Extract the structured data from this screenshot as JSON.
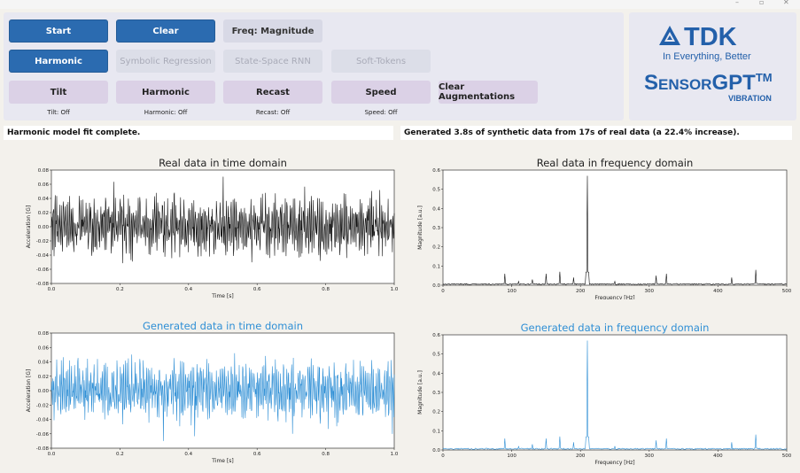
{
  "window": {
    "minimize": "–",
    "maximize": "▫",
    "close": "✕"
  },
  "row1": [
    {
      "id": "start",
      "label": "Start",
      "style": "primary"
    },
    {
      "id": "clear",
      "label": "Clear",
      "style": "primary"
    },
    {
      "id": "freq",
      "label": "Freq: Magnitude",
      "style": "neutral"
    }
  ],
  "row2": [
    {
      "id": "harmonic-model",
      "label": "Harmonic",
      "style": "primary"
    },
    {
      "id": "symbolic-regression",
      "label": "Symbolic Regression",
      "style": "disabled"
    },
    {
      "id": "state-space-rnn",
      "label": "State-Space RNN",
      "style": "disabled"
    },
    {
      "id": "soft-tokens",
      "label": "Soft-Tokens",
      "style": "disabled"
    }
  ],
  "row3": [
    {
      "id": "tilt",
      "label": "Tilt",
      "status": "Tilt: Off"
    },
    {
      "id": "harmonic-aug",
      "label": "Harmonic",
      "status": "Harmonic: Off"
    },
    {
      "id": "recast",
      "label": "Recast",
      "status": "Recast: Off"
    },
    {
      "id": "speed",
      "label": "Speed",
      "status": "Speed: Off"
    },
    {
      "id": "clear-augmentations",
      "label": "Clear Augmentations",
      "status": ""
    }
  ],
  "logo": {
    "brand": "TDK",
    "tagline": "In Everything, Better",
    "product": "SensorGPT",
    "tm": "TM",
    "sub": "VIBRATION",
    "color": "#2360aa"
  },
  "status_left": "Harmonic model fit complete.",
  "status_right": "Generated 3.8s of synthetic data from 17s of real data (a 22.4% increase).",
  "colors": {
    "real": "#111111",
    "generated": "#2f8fd5",
    "primary": "#2b6bb0"
  },
  "chart_data": [
    {
      "type": "line",
      "title": "Real data in time domain",
      "xlabel": "Time [s]",
      "ylabel": "Acceleration [G]",
      "xlim": [
        0.0,
        1.0
      ],
      "ylim": [
        -0.08,
        0.08
      ],
      "xticks": [
        "0.0",
        "0.2",
        "0.4",
        "0.6",
        "0.8",
        "1.0"
      ],
      "yticks": [
        "0.08",
        "0.06",
        "0.04",
        "0.02",
        "0.00",
        "-0.02",
        "-0.04",
        "-0.06",
        "-0.08"
      ],
      "series": [
        {
          "color": "#111111",
          "amplitude": 0.045,
          "peak": 0.075
        }
      ]
    },
    {
      "type": "line",
      "title": "Real data in frequency domain",
      "xlabel": "Frequency [Hz]",
      "ylabel": "Magnitude [a.u.]",
      "xlim": [
        0,
        500
      ],
      "ylim": [
        0.0,
        0.6
      ],
      "xticks": [
        "0",
        "100",
        "200",
        "300",
        "400",
        "500"
      ],
      "yticks": [
        "0.6",
        "0.5",
        "0.4",
        "0.3",
        "0.2",
        "0.1",
        "0.0"
      ],
      "peaks": [
        [
          90,
          0.06
        ],
        [
          110,
          0.02
        ],
        [
          130,
          0.03
        ],
        [
          150,
          0.06
        ],
        [
          170,
          0.07
        ],
        [
          190,
          0.04
        ],
        [
          210,
          0.57
        ],
        [
          250,
          0.02
        ],
        [
          310,
          0.05
        ],
        [
          325,
          0.06
        ],
        [
          420,
          0.04
        ],
        [
          455,
          0.08
        ]
      ],
      "series": [
        {
          "color": "#111111"
        }
      ]
    },
    {
      "type": "line",
      "title": "Generated data in time domain",
      "xlabel": "Time [s]",
      "ylabel": "Acceleration [G]",
      "xlim": [
        0.0,
        1.0
      ],
      "ylim": [
        -0.08,
        0.08
      ],
      "xticks": [
        "0.0",
        "0.2",
        "0.4",
        "0.6",
        "0.8",
        "1.0"
      ],
      "yticks": [
        "0.08",
        "0.06",
        "0.04",
        "0.02",
        "0.00",
        "-0.02",
        "-0.04",
        "-0.06",
        "-0.08"
      ],
      "series": [
        {
          "color": "#2f8fd5",
          "amplitude": 0.045,
          "peak": 0.07
        }
      ]
    },
    {
      "type": "line",
      "title": "Generated data in frequency domain",
      "xlabel": "Frequency [Hz]",
      "ylabel": "Magnitude [a.u.]",
      "xlim": [
        0,
        500
      ],
      "ylim": [
        0.0,
        0.6
      ],
      "xticks": [
        "0",
        "100",
        "200",
        "300",
        "400",
        "500"
      ],
      "yticks": [
        "0.6",
        "0.5",
        "0.4",
        "0.3",
        "0.2",
        "0.1",
        "0.0"
      ],
      "peaks": [
        [
          90,
          0.06
        ],
        [
          110,
          0.02
        ],
        [
          130,
          0.03
        ],
        [
          150,
          0.06
        ],
        [
          170,
          0.07
        ],
        [
          190,
          0.04
        ],
        [
          210,
          0.57
        ],
        [
          250,
          0.02
        ],
        [
          310,
          0.05
        ],
        [
          325,
          0.06
        ],
        [
          420,
          0.04
        ],
        [
          455,
          0.08
        ]
      ],
      "series": [
        {
          "color": "#2f8fd5"
        }
      ]
    }
  ]
}
